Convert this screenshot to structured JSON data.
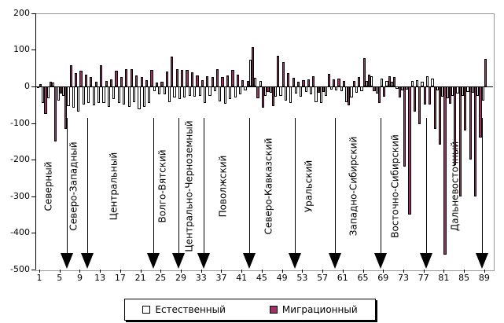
{
  "chart_data": {
    "type": "bar",
    "title": "",
    "xlabel": "",
    "ylabel": "",
    "ylim": [
      -500,
      200
    ],
    "y_ticks": [
      200,
      100,
      0,
      -100,
      -200,
      -300,
      -400,
      -500
    ],
    "x_ticks": [
      1,
      5,
      9,
      13,
      17,
      21,
      25,
      29,
      33,
      37,
      41,
      45,
      49,
      53,
      57,
      61,
      65,
      69,
      73,
      77,
      81,
      85,
      89
    ],
    "categories_count": 89,
    "grid": "off",
    "legend_position": "bottom",
    "series": [
      {
        "name": "Естественный",
        "color": "#FFFFFF",
        "values": [
          -2,
          -45,
          -32,
          10,
          -38,
          -25,
          -54,
          -58,
          -68,
          -50,
          -45,
          -52,
          -45,
          -45,
          -55,
          -35,
          -45,
          -50,
          -55,
          -42,
          -62,
          -55,
          -45,
          -12,
          -22,
          -21,
          -42,
          -30,
          -34,
          -30,
          -25,
          -28,
          -25,
          -45,
          -25,
          -12,
          -41,
          -48,
          -35,
          -30,
          -22,
          -11,
          73,
          23,
          14,
          -25,
          -18,
          -29,
          -25,
          -38,
          -45,
          -20,
          -28,
          -15,
          -22,
          -44,
          -46,
          -25,
          -8,
          -10,
          -12,
          -43,
          -30,
          -18,
          -12,
          14,
          28,
          -20,
          22,
          15,
          12,
          -7,
          -10,
          -8,
          15,
          18,
          12,
          28,
          22,
          -10,
          -29,
          -32,
          -25,
          -20,
          -25,
          -15,
          -18,
          -25,
          -39
        ]
      },
      {
        "name": "Миграционный",
        "color": "#993366",
        "values": [
          7,
          -75,
          12,
          -150,
          -20,
          -115,
          59,
          37,
          42,
          32,
          25,
          12,
          59,
          15,
          20,
          42,
          25,
          48,
          48,
          30,
          25,
          18,
          45,
          10,
          13,
          41,
          82,
          47,
          45,
          45,
          39,
          30,
          18,
          28,
          25,
          47,
          25,
          30,
          45,
          33,
          18,
          15,
          107,
          -32,
          -57,
          -15,
          -53,
          84,
          66,
          37,
          23,
          13,
          18,
          20,
          28,
          -18,
          -15,
          35,
          20,
          22,
          15,
          -51,
          15,
          25,
          77,
          32,
          -12,
          -45,
          -28,
          27,
          25,
          -30,
          -219,
          -350,
          -68,
          -104,
          -49,
          -49,
          -115,
          -158,
          -460,
          -47,
          -215,
          -300,
          -120,
          -200,
          -300,
          -140,
          75
        ]
      }
    ],
    "regions": {
      "boundaries_after_category": [
        6,
        10,
        23,
        28,
        33,
        42,
        51,
        59,
        68,
        77,
        88
      ],
      "labels": [
        {
          "name": "Северный",
          "at_category": 2.9
        },
        {
          "name": "Северо-Западный",
          "at_category": 7.8
        },
        {
          "name": "Центральный",
          "at_category": 15.8
        },
        {
          "name": "Волго-Вятский",
          "at_category": 25.4
        },
        {
          "name": "Центрально-Черноземный",
          "at_category": 30.7
        },
        {
          "name": "Поволжский",
          "at_category": 37.4
        },
        {
          "name": "Северо-Кавказский",
          "at_category": 46.4
        },
        {
          "name": "Уральский",
          "at_category": 54.3
        },
        {
          "name": "Западно-Сибирский",
          "at_category": 63.2
        },
        {
          "name": "Восточно-Сибирский",
          "at_category": 71.4
        },
        {
          "name": "Дальневосточный",
          "at_category": 83.3
        }
      ]
    },
    "colors": {
      "natural_fill": "#FFFFFF",
      "migration_fill": "#993366",
      "bar_border": "#000000",
      "plot_border": "#969696",
      "axis": "#000000"
    }
  }
}
